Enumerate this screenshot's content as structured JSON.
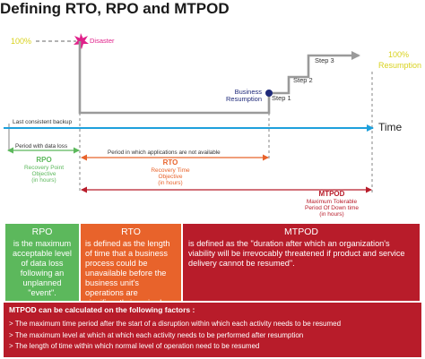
{
  "title": "Defining RTO, RPO and MTPOD",
  "diagram": {
    "label_100_left": "100%",
    "disaster": "Disaster",
    "label_100_right": "100%",
    "resumption": "Resumption",
    "step3": "Step 3",
    "step2": "Step 2",
    "step1": "Step 1",
    "business_resumption": [
      "Business",
      "Resumption"
    ],
    "last_backup": "Last consistent backup",
    "time": "Time",
    "period_data_loss": "Period with data loss",
    "period_apps_unavailable": "Period in which applications are not available",
    "rpo_label": {
      "abbr": "RPO",
      "lines": [
        "Recovery Point",
        "Objective",
        "(in hours)"
      ]
    },
    "rto_label": {
      "abbr": "RTO",
      "lines": [
        "Recovery Time",
        "Objective",
        "(in hours)"
      ]
    },
    "mtpod_label": {
      "abbr": "MTPOD",
      "lines": [
        "Maximum Tolerable",
        "Period Of Down time",
        "(in hours)"
      ]
    }
  },
  "boxes": {
    "rpo": {
      "title": "RPO",
      "text": "is the maximum acceptable level of data loss following an unplanned \"event\"."
    },
    "rto": {
      "title": "RTO",
      "text": "is defined as the length of time that a business process could be unavailable before the business unit's operations are significantly impaired."
    },
    "mtpod": {
      "title": "MTPOD",
      "text": "is defined as the \"duration after which an organization's viability will be irrevocably threatened if product and service delivery cannot be resumed\"."
    }
  },
  "calc": {
    "heading": "MTPOD can be calculated on the following factors :",
    "factors": [
      "> The maximum time period after the start of a disruption within which each activity needs to be resumed",
      "> The maximum level at which at which each activity needs to be performed after resumption",
      "> The length of time within which normal level of operation need to be resumed"
    ]
  },
  "colors": {
    "green": "#5cb85c",
    "orange": "#e8632b",
    "red": "#b81c2a",
    "magenta": "#e0218a",
    "yellow": "#d9d21e",
    "blue": "#1ea0dc",
    "gray": "#9a9a9a"
  }
}
